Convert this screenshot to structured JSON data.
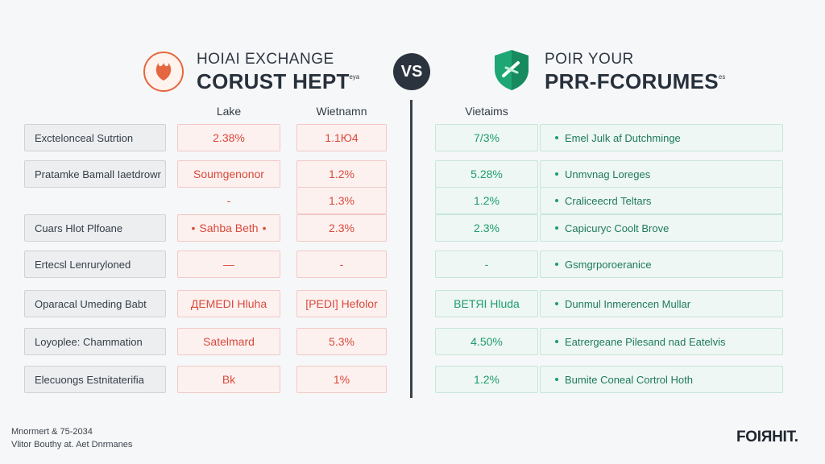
{
  "header": {
    "left_line1": "HOIAI EXCHANGE",
    "left_line2": "CORUST HEPT",
    "left_line2_sup": "ᵉʸᵃ",
    "vs": "VS",
    "right_line1": "POIR YOUR",
    "right_line2": "PRR-FCORUMES",
    "right_line2_sup": "ᵉˢ",
    "left_logo": "flame-icon",
    "right_logo": "shield-icon"
  },
  "columns": {
    "left_a": "Lake",
    "left_b": "Wietnamn",
    "right_a": "Vietaims"
  },
  "rows": [
    {
      "label": "Exctelonceal Sutrtion",
      "left_a": "2.38%",
      "left_b": "1.1Ю4",
      "right_a": "7/3%",
      "right_desc": "Emel Julk af Dutchminge"
    },
    {
      "label": "Pratamke Bamall Iaetdrowr",
      "left_a": "Soumgenonor",
      "left_b": "1.2%",
      "right_a": "5.28%",
      "right_desc": "Unmvnag Loreges"
    },
    {
      "label": "",
      "left_a": "-",
      "left_b": "1.3%",
      "right_a": "1.2%",
      "right_desc": "Craliceecrd Teltars"
    },
    {
      "label": "Cuars Hlot Plfoane",
      "left_a": "Sahba Beth",
      "left_b": "2.3%",
      "right_a": "2.3%",
      "right_desc": "Capicuryc Coolt Brove"
    },
    {
      "label": "Ertecsl Lenruryloned",
      "left_a": "—",
      "left_b": "-",
      "right_a": "-",
      "right_desc": "Gsmgrporoeranice"
    },
    {
      "label": "Oparacal Umeding Babt",
      "left_a": "ДEMEDI Hluha",
      "left_b": "[РEDI] Hefolor",
      "right_a": "ВETЯI Hluda",
      "right_desc": "Dunmul Inmerencen Mullar"
    },
    {
      "label": "Loyoplee: Chammation",
      "left_a": "Satelmard",
      "left_b": "5.3%",
      "right_a": "4.50%",
      "right_desc": "Eatrergeane Pilesand nad Eatelvis"
    },
    {
      "label": "Elecuongs Estnitaterifia",
      "left_a": "Bk",
      "left_b": "1%",
      "right_a": "1.2%",
      "right_desc": "Bumite Coneal Cortrol Hoth"
    }
  ],
  "footer": {
    "line1": "Mnormert & 75-2034",
    "line2": "Vlitor Bouthy at. Aet Dnrmanes",
    "brand": "FOIЯHIT."
  }
}
